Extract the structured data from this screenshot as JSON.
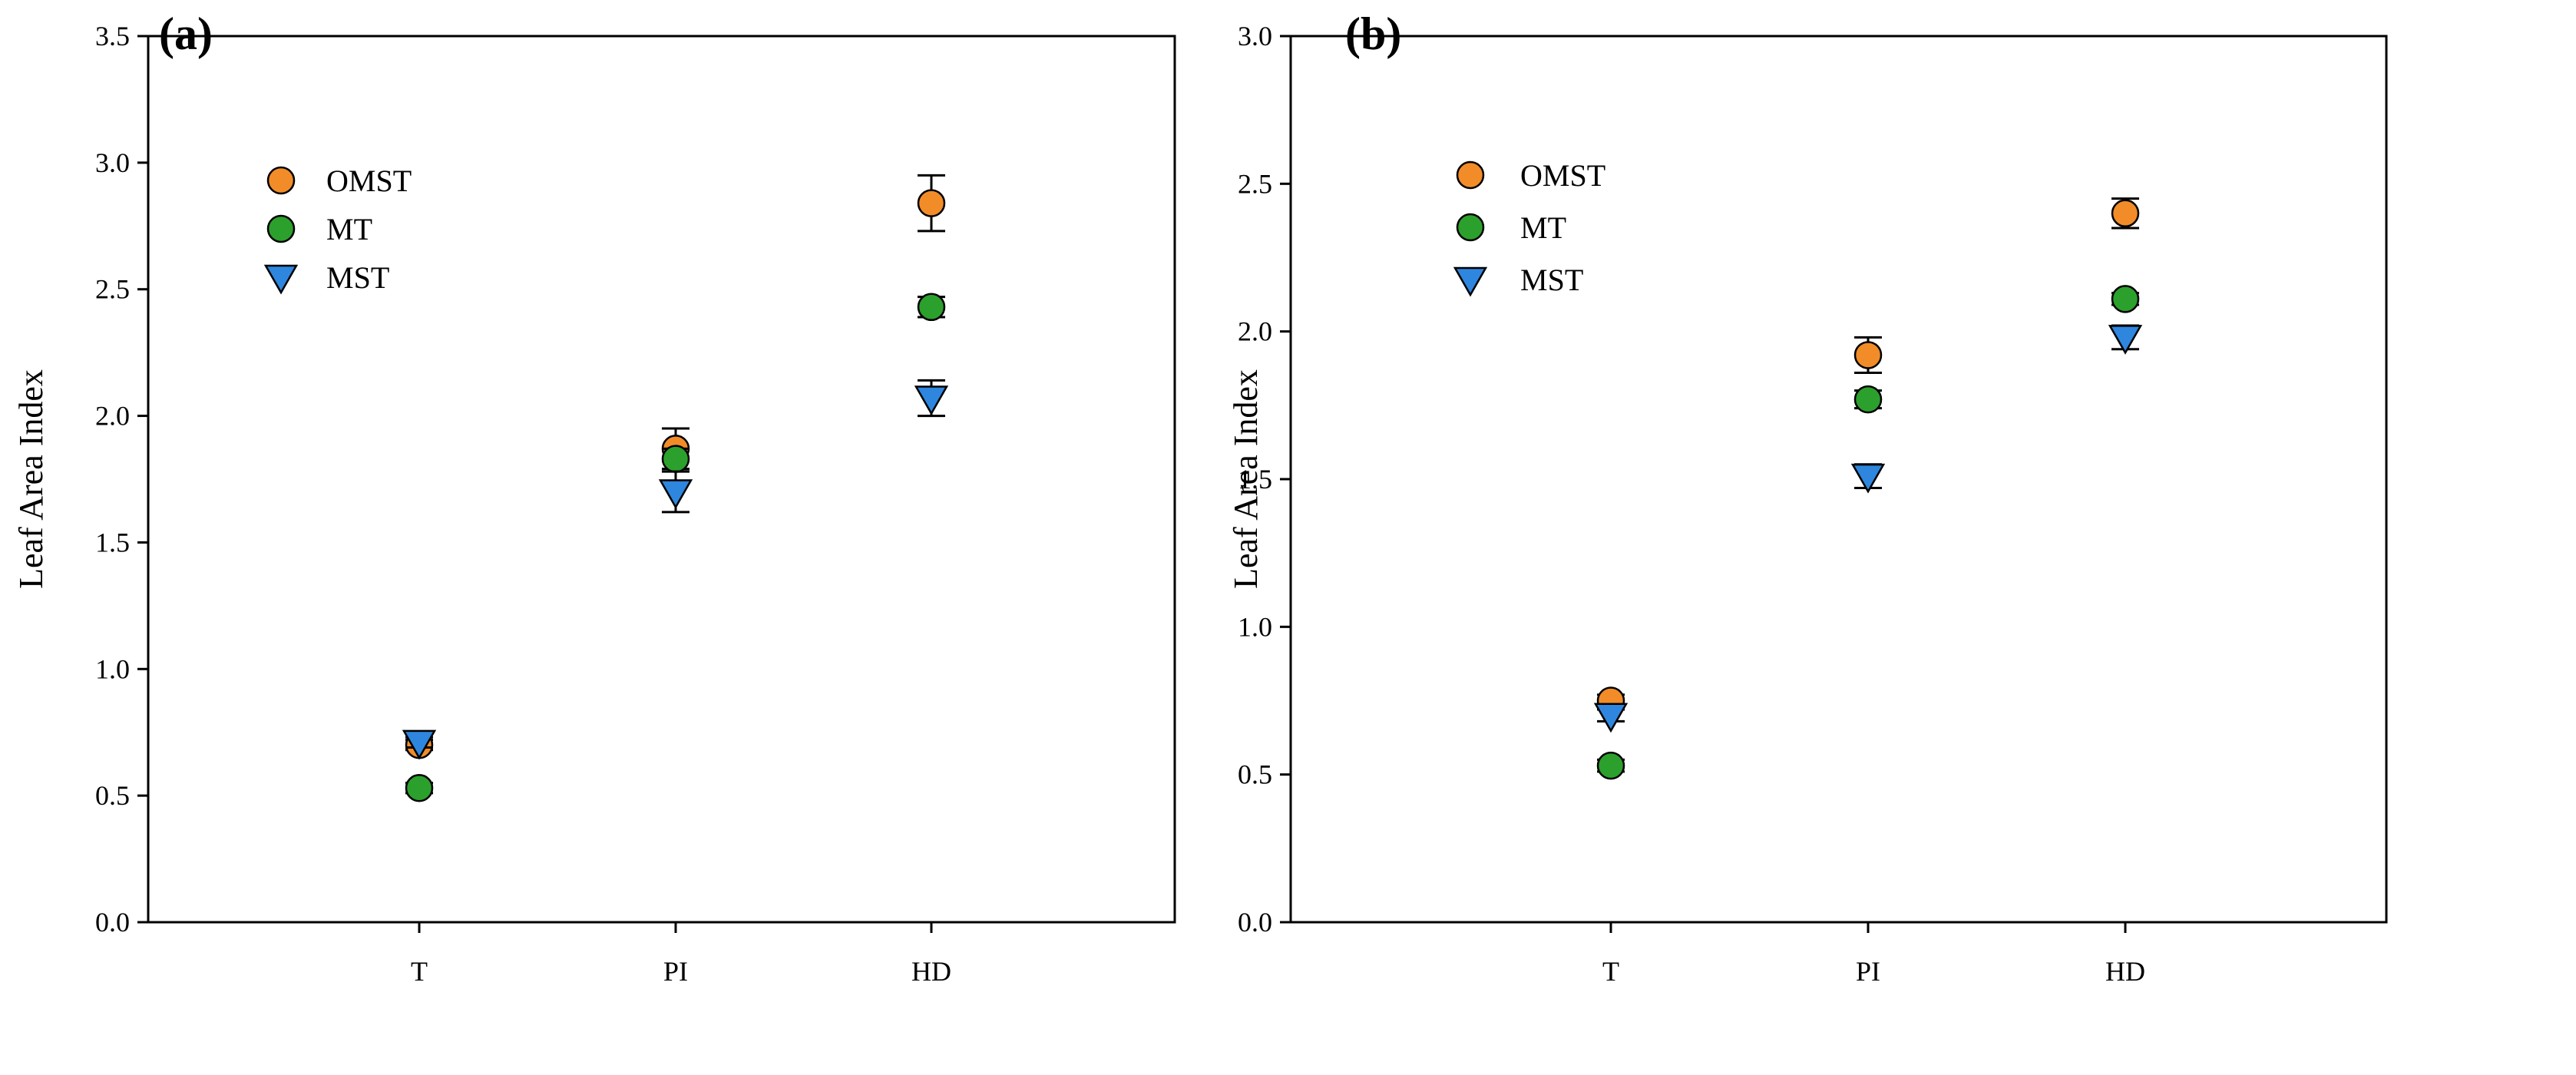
{
  "chart_data": [
    {
      "type": "scatter",
      "panel_label": "(a)",
      "categories": [
        "T",
        "PI",
        "HD"
      ],
      "xlabel": "",
      "ylabel": "Leaf Area Index",
      "ylim": [
        0,
        3.5
      ],
      "yticks": [
        "0.0",
        "0.5",
        "1.0",
        "1.5",
        "2.0",
        "2.5",
        "3.0",
        "3.5"
      ],
      "grid": false,
      "legend_position": "top-left",
      "series": [
        {
          "name": "OMST",
          "marker": "circle",
          "color": "#F28C28",
          "values": [
            0.7,
            1.87,
            2.84
          ],
          "errors": [
            0.02,
            0.08,
            0.11
          ]
        },
        {
          "name": "MT",
          "marker": "circle",
          "color": "#2CA02C",
          "values": [
            0.53,
            1.83,
            2.43
          ],
          "errors": [
            0.02,
            0.04,
            0.04
          ]
        },
        {
          "name": "MST",
          "marker": "triangle-down",
          "color": "#2E86DE",
          "values": [
            0.71,
            1.7,
            2.07
          ],
          "errors": [
            0.02,
            0.08,
            0.07
          ]
        }
      ]
    },
    {
      "type": "scatter",
      "panel_label": "(b)",
      "categories": [
        "T",
        "PI",
        "HD"
      ],
      "xlabel": "",
      "ylabel": "Leaf Area Index",
      "ylim": [
        0,
        3.0
      ],
      "yticks": [
        "0.0",
        "0.5",
        "1.0",
        "1.5",
        "2.0",
        "2.5",
        "3.0"
      ],
      "grid": false,
      "legend_position": "top-left",
      "series": [
        {
          "name": "OMST",
          "marker": "circle",
          "color": "#F28C28",
          "values": [
            0.75,
            1.92,
            2.4
          ],
          "errors": [
            0.02,
            0.06,
            0.05
          ]
        },
        {
          "name": "MT",
          "marker": "circle",
          "color": "#2CA02C",
          "values": [
            0.53,
            1.77,
            2.11
          ],
          "errors": [
            0.02,
            0.03,
            0.02
          ]
        },
        {
          "name": "MST",
          "marker": "triangle-down",
          "color": "#2E86DE",
          "values": [
            0.7,
            1.51,
            1.98
          ],
          "errors": [
            0.02,
            0.04,
            0.04
          ]
        }
      ]
    }
  ]
}
